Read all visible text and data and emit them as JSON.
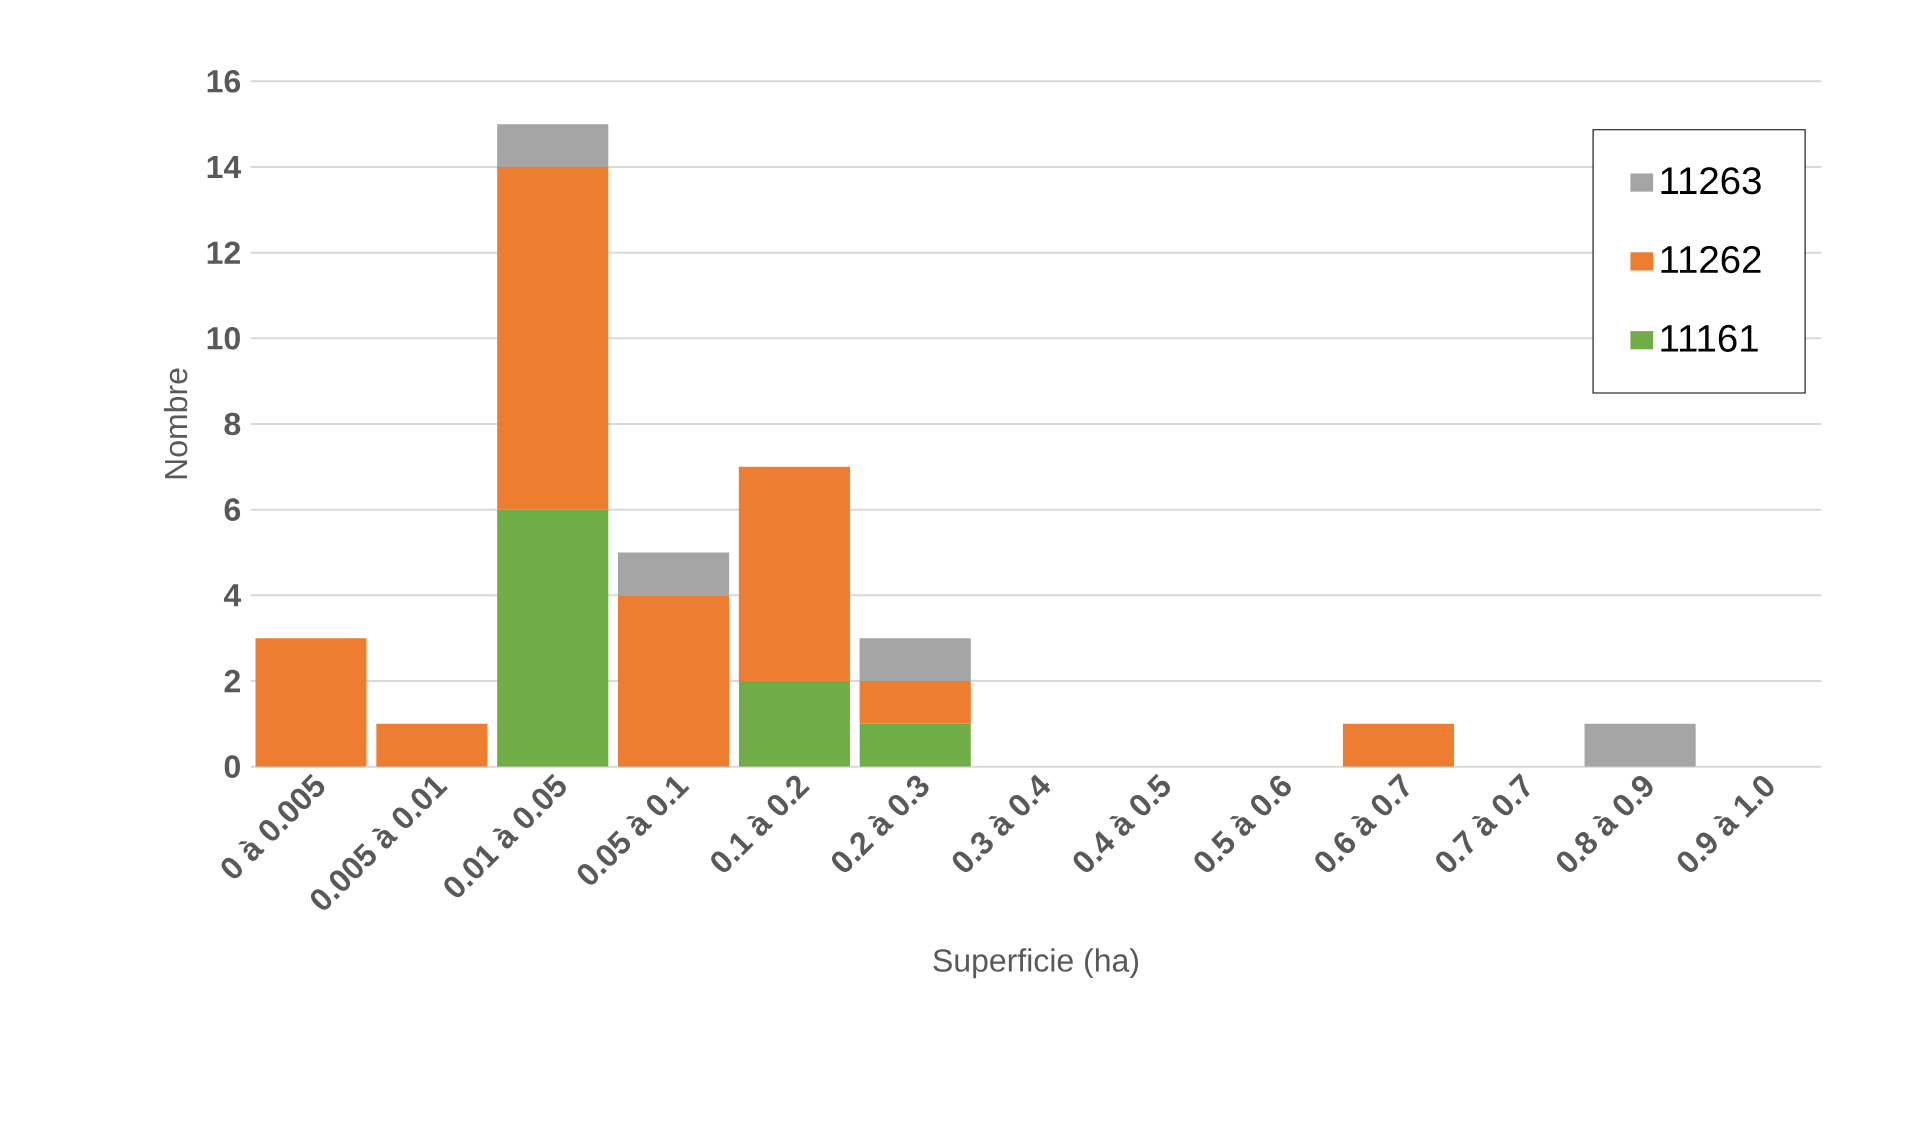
{
  "chart_data": {
    "type": "bar",
    "stacked": true,
    "xlabel": "Superficie (ha)",
    "ylabel": "Nombre",
    "categories": [
      "0 à 0.005",
      "0.005 à 0.01",
      "0.01 à 0.05",
      "0.05 à 0.1",
      "0.1 à 0.2",
      "0.2 à 0.3",
      "0.3 à 0.4",
      "0.4 à 0.5",
      "0.5 à 0.6",
      "0.6 à 0.7",
      "0.7 à 0.7",
      "0.8 à 0.9",
      "0.9 à 1.0"
    ],
    "series": [
      {
        "name": "11161",
        "color": "#70ad47",
        "values": [
          0,
          0,
          6,
          0,
          2,
          1,
          0,
          0,
          0,
          0,
          0,
          0,
          0
        ]
      },
      {
        "name": "11262",
        "color": "#ed7d31",
        "values": [
          3,
          1,
          8,
          4,
          5,
          1,
          0,
          0,
          0,
          1,
          0,
          0,
          0
        ]
      },
      {
        "name": "11263",
        "color": "#a5a5a5",
        "values": [
          0,
          0,
          1,
          1,
          0,
          1,
          0,
          0,
          0,
          0,
          0,
          1,
          0
        ]
      }
    ],
    "ylim": [
      0,
      16
    ],
    "yticks": [
      0,
      2,
      4,
      6,
      8,
      10,
      12,
      14,
      16
    ],
    "grid": "y",
    "legend": "top right"
  }
}
